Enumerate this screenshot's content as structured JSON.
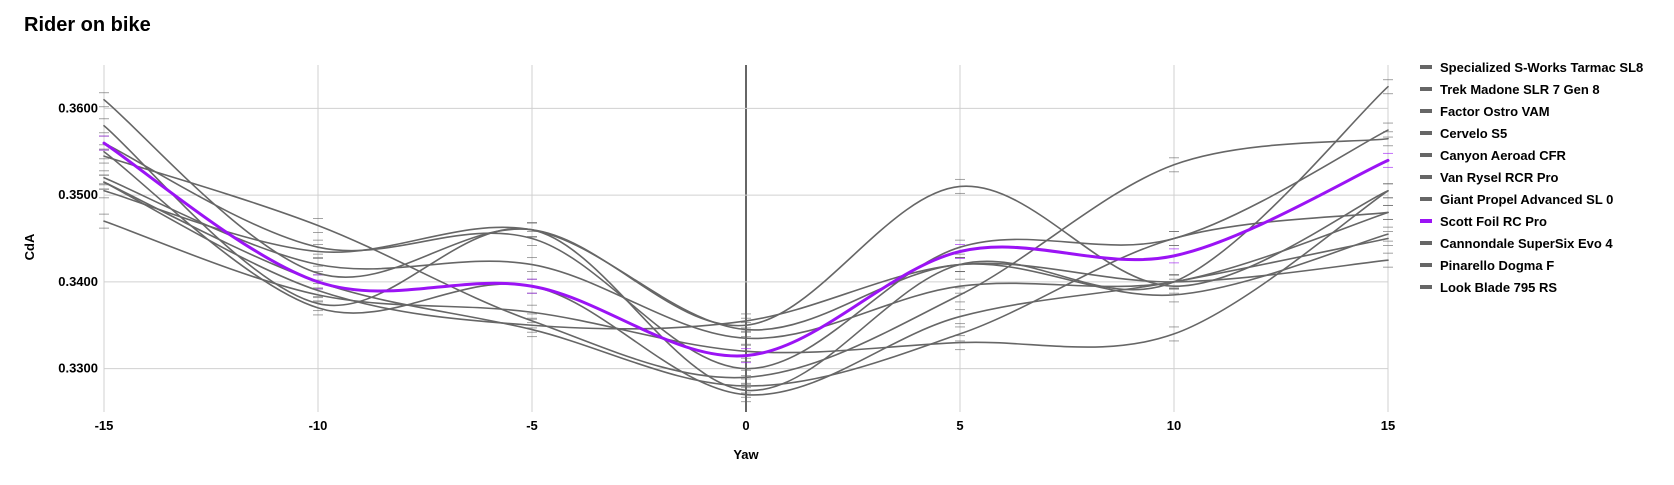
{
  "chart_data": {
    "type": "line",
    "title": "Rider on bike",
    "xlabel": "Yaw",
    "ylabel": "CdA",
    "x": [
      -15,
      -10,
      -5,
      0,
      5,
      10,
      15
    ],
    "xticks": [
      "-15",
      "-10",
      "-5",
      "0",
      "5",
      "10",
      "15"
    ],
    "yticks": [
      "0.3300",
      "0.3400",
      "0.3500",
      "0.3600"
    ],
    "xlim": [
      -15,
      15
    ],
    "ylim": [
      0.325,
      0.365
    ],
    "grid": true,
    "error_bars": true,
    "legend_position": "right",
    "highlight_color": "#9b13f5",
    "base_color": "#666666",
    "series": [
      {
        "name": "Specialized S-Works Tarmac SL8",
        "values": [
          0.361,
          0.341,
          0.346,
          0.335,
          0.351,
          0.3395,
          0.3505
        ],
        "highlight": false
      },
      {
        "name": "Trek Madone SLR 7 Gen 8",
        "values": [
          0.358,
          0.3375,
          0.346,
          0.3275,
          0.342,
          0.34,
          0.3625
        ],
        "highlight": false
      },
      {
        "name": "Factor Ostro VAM",
        "values": [
          0.356,
          0.344,
          0.345,
          0.33,
          0.344,
          0.345,
          0.3575
        ],
        "highlight": false
      },
      {
        "name": "Cervelo S5",
        "values": [
          0.3545,
          0.3465,
          0.3355,
          0.329,
          0.3385,
          0.3535,
          0.3565
        ],
        "highlight": false
      },
      {
        "name": "Canyon Aeroad CFR",
        "values": [
          0.352,
          0.342,
          0.342,
          0.3335,
          0.3395,
          0.34,
          0.348
        ],
        "highlight": false
      },
      {
        "name": "Van Rysel RCR Pro",
        "values": [
          0.3505,
          0.3435,
          0.346,
          0.3345,
          0.342,
          0.3385,
          0.3455
        ],
        "highlight": false
      },
      {
        "name": "Giant Propel Advanced SL 0",
        "values": [
          0.347,
          0.3385,
          0.3365,
          0.332,
          0.333,
          0.334,
          0.3505
        ],
        "highlight": false
      },
      {
        "name": "Scott Foil RC Pro",
        "values": [
          0.356,
          0.34,
          0.3395,
          0.3315,
          0.3435,
          0.343,
          0.354
        ],
        "highlight": true
      },
      {
        "name": "Cannondale SuperSix Evo 4",
        "values": [
          0.355,
          0.337,
          0.3395,
          0.327,
          0.336,
          0.34,
          0.345
        ],
        "highlight": false
      },
      {
        "name": "Pinarello Dogma F",
        "values": [
          0.3515,
          0.34,
          0.3345,
          0.328,
          0.334,
          0.345,
          0.348
        ],
        "highlight": false
      },
      {
        "name": "Look Blade 795 RS",
        "values": [
          0.3515,
          0.339,
          0.335,
          0.3355,
          0.342,
          0.34,
          0.3425
        ],
        "highlight": false
      }
    ]
  }
}
